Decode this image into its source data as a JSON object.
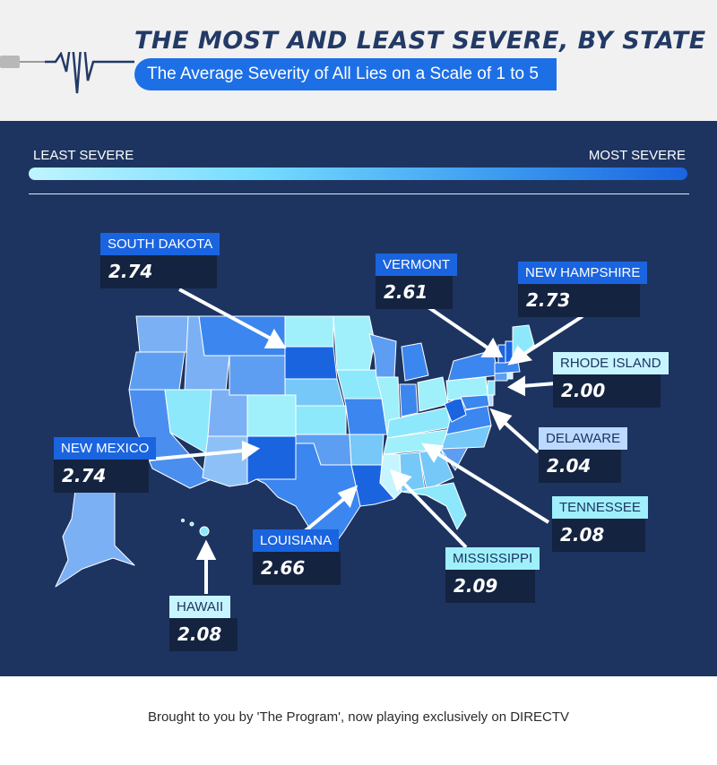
{
  "header": {
    "title": "THE MOST AND LEAST SEVERE, BY STATE",
    "subtitle": "The Average Severity of All Lies on a Scale of 1 to 5"
  },
  "legend": {
    "low_label": "LEAST SEVERE",
    "high_label": "MOST SEVERE",
    "colors": [
      "#bff4ff",
      "#75dcff",
      "#3d9ef0",
      "#1a64e0"
    ]
  },
  "callouts": [
    {
      "state": "SOUTH DAKOTA",
      "value": "2.74",
      "color": "#1a64e0",
      "text_color": "#ffffff"
    },
    {
      "state": "VERMONT",
      "value": "2.61",
      "color": "#1a64e0",
      "text_color": "#ffffff"
    },
    {
      "state": "NEW HAMPSHIRE",
      "value": "2.73",
      "color": "#1a64e0",
      "text_color": "#ffffff"
    },
    {
      "state": "RHODE ISLAND",
      "value": "2.00",
      "color": "#c7f5ff",
      "text_color": "#1d3461"
    },
    {
      "state": "NEW MEXICO",
      "value": "2.74",
      "color": "#1a64e0",
      "text_color": "#ffffff"
    },
    {
      "state": "DELAWARE",
      "value": "2.04",
      "color": "#bcd9ff",
      "text_color": "#1d3461"
    },
    {
      "state": "TENNESSEE",
      "value": "2.08",
      "color": "#9ff0fb",
      "text_color": "#1d3461"
    },
    {
      "state": "LOUISIANA",
      "value": "2.66",
      "color": "#1a64e0",
      "text_color": "#ffffff"
    },
    {
      "state": "MISSISSIPPI",
      "value": "2.09",
      "color": "#9ff0fb",
      "text_color": "#1d3461"
    },
    {
      "state": "HAWAII",
      "value": "2.08",
      "color": "#c7f5ff",
      "text_color": "#1d3461"
    }
  ],
  "footer": {
    "text": "Brought to you by 'The Program', now playing exclusively on DIRECTV"
  }
}
